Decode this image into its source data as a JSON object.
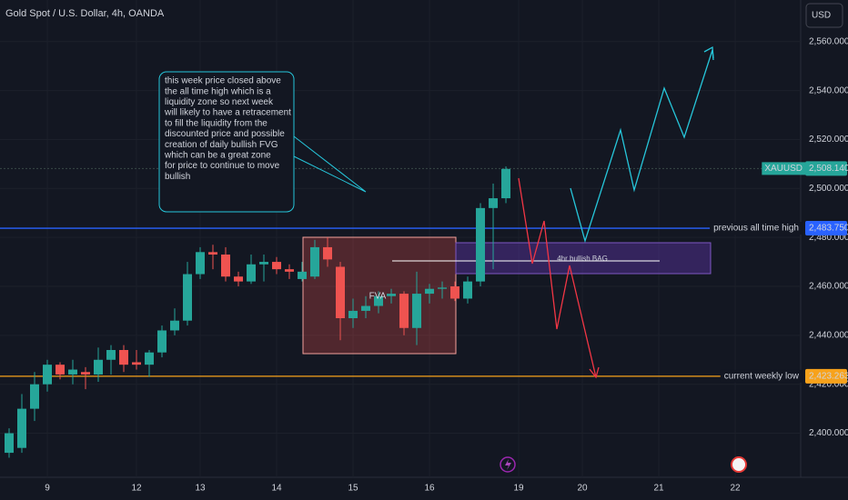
{
  "chart_data": {
    "type": "candlestick",
    "title": "Gold Spot / U.S. Dollar, 4h, OANDA",
    "currency": "USD",
    "open": [
      2392,
      2394,
      2410,
      2420,
      2428,
      2424,
      2425,
      2424,
      2430,
      2434,
      2429,
      2428,
      2433,
      2442,
      2446,
      2465,
      2474,
      2473,
      2464,
      2462,
      2469,
      2470,
      2467,
      2463,
      2464,
      2476,
      2468,
      2447,
      2450,
      2452,
      2456,
      2457,
      2443,
      2457,
      2459,
      2460,
      2455,
      2462,
      2492,
      2496
    ],
    "high": [
      2402,
      2416,
      2425,
      2430,
      2429,
      2430,
      2427,
      2435,
      2436,
      2436,
      2434,
      2434,
      2444,
      2451,
      2470,
      2476,
      2477,
      2476,
      2466,
      2473,
      2473,
      2472,
      2469,
      2470,
      2479,
      2480,
      2470,
      2455,
      2456,
      2458,
      2459,
      2458,
      2466,
      2461,
      2462,
      2462,
      2464,
      2494,
      2502,
      2509
    ],
    "low": [
      2390,
      2392,
      2405,
      2417,
      2422,
      2420,
      2418,
      2421,
      2424,
      2425,
      2426,
      2423,
      2431,
      2440,
      2444,
      2463,
      2467,
      2462,
      2460,
      2461,
      2462,
      2465,
      2463,
      2462,
      2463,
      2468,
      2438,
      2443,
      2447,
      2449,
      2453,
      2440,
      2436,
      2453,
      2455,
      2454,
      2453,
      2460,
      2467,
      2494
    ],
    "close": [
      2400,
      2410,
      2420,
      2428,
      2424,
      2426,
      2424,
      2430,
      2434,
      2428,
      2428,
      2433,
      2442,
      2446,
      2465,
      2474,
      2473,
      2464,
      2462,
      2469,
      2470,
      2467,
      2466,
      2466,
      2476,
      2471,
      2447,
      2450,
      2452,
      2456,
      2457,
      2443,
      2457,
      2459,
      2459.5,
      2455,
      2462,
      2492,
      2496,
      2508
    ],
    "up_color": "#26a69a",
    "down_color": "#ef5350",
    "ylim": [
      2382,
      2577
    ],
    "yticks": [
      {
        "value": 2400,
        "label": "2,400.000"
      },
      {
        "value": 2420,
        "label": "2,420.000"
      },
      {
        "value": 2440,
        "label": "2,440.000"
      },
      {
        "value": 2460,
        "label": "2,460.000"
      },
      {
        "value": 2480,
        "label": "2,480.000"
      },
      {
        "value": 2500,
        "label": "2,500.000"
      },
      {
        "value": 2520,
        "label": "2,520.000"
      },
      {
        "value": 2540,
        "label": "2,540.000"
      },
      {
        "value": 2560,
        "label": "2,560.000"
      }
    ],
    "xlim": [
      -0.714,
      62.14
    ],
    "xticks": [
      {
        "value": 3,
        "label": "9"
      },
      {
        "value": 10,
        "label": "12"
      },
      {
        "value": 15,
        "label": "13"
      },
      {
        "value": 21,
        "label": "14"
      },
      {
        "value": 27,
        "label": "15"
      },
      {
        "value": 33,
        "label": "16"
      },
      {
        "value": 40,
        "label": "19"
      },
      {
        "value": 45,
        "label": "20"
      },
      {
        "value": 51,
        "label": "21"
      },
      {
        "value": 57,
        "label": "22"
      }
    ],
    "price_lines": [
      {
        "name": "XAUUSD",
        "value": 2508.14,
        "value_label": "2,508.140",
        "color": "#26a69a"
      },
      {
        "name": "previous all time high",
        "value": 2483.75,
        "value_label": "2,483.750",
        "color": "#2962ff"
      },
      {
        "name": "current weekly low",
        "value": 2423.263,
        "value_label": "2,423.263",
        "color": "#f7a21b"
      }
    ],
    "annotations": {
      "note": [
        "this week price closed above",
        "the all time high which is a",
        "liquidity zone so next week",
        "will likely to have a retracement",
        "to fill the liquidity from the",
        "discounted price and possible",
        "creation of daily bullish FVG",
        "which can be a great zone",
        "for price to continue to move",
        "bullish"
      ],
      "fva": "FVA",
      "bag": "4hr bullish BAG"
    }
  }
}
